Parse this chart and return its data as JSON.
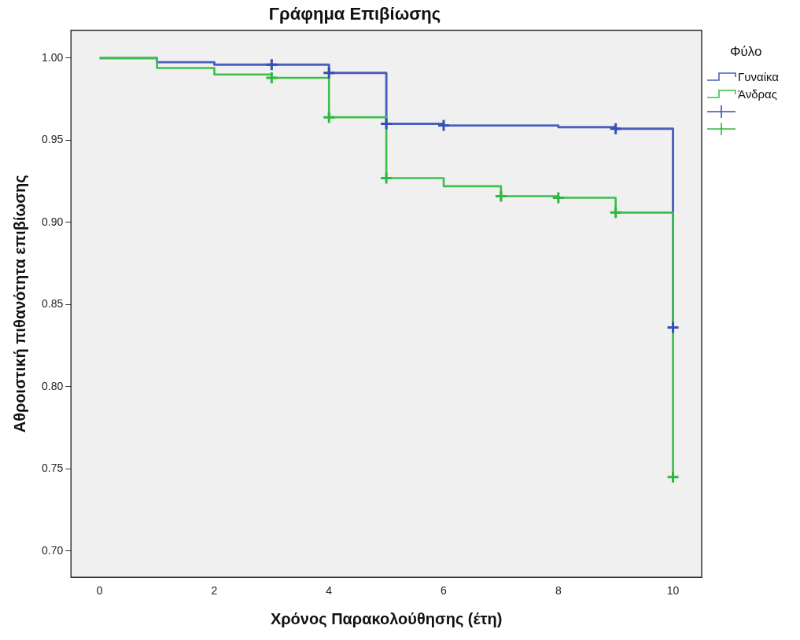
{
  "chart_data": {
    "type": "step",
    "title": "Γράφημα Επιβίωσης",
    "xlabel": "Χρόνος Παρακολούθησης (έτη)",
    "ylabel": "Αθροιστική πιθανότητα επιβίωσης",
    "legend_title": "Φύλο",
    "legend": "right",
    "grid": false,
    "xlim": [
      -0.5,
      10.5
    ],
    "xticks": [
      0,
      2,
      4,
      6,
      8,
      10
    ],
    "ylim": [
      0.684,
      1.017
    ],
    "yticks": [
      {
        "value": 0.7,
        "label": "0.70"
      },
      {
        "value": 0.75,
        "label": "0.75"
      },
      {
        "value": 0.8,
        "label": "0.80"
      },
      {
        "value": 0.85,
        "label": "0.85"
      },
      {
        "value": 0.9,
        "label": "0.90"
      },
      {
        "value": 0.95,
        "label": "0.95"
      },
      {
        "value": 1.0,
        "label": "1.00"
      }
    ],
    "series": [
      {
        "name": "Γυναίκα",
        "marker": "none",
        "color": "#4a5fbf",
        "x": [
          0,
          1,
          2,
          3,
          4,
          5,
          6,
          8,
          9,
          10
        ],
        "values": [
          1.0,
          0.9975,
          0.996,
          0.996,
          0.991,
          0.96,
          0.959,
          0.958,
          0.957,
          0.836
        ]
      },
      {
        "name": "Άνδρας",
        "marker": "none",
        "color": "#3cbf4a",
        "x": [
          0,
          1,
          2,
          3,
          4,
          5,
          6,
          7,
          8,
          9,
          10
        ],
        "values": [
          1.0,
          0.994,
          0.99,
          0.988,
          0.964,
          0.927,
          0.922,
          0.916,
          0.915,
          0.906,
          0.745
        ]
      },
      {
        "type": "scatter",
        "marker": "cross",
        "color": "#3550b5",
        "x": [
          3,
          4,
          5,
          6,
          9,
          10
        ],
        "values": [
          0.996,
          0.991,
          0.96,
          0.959,
          0.957,
          0.836
        ]
      },
      {
        "type": "scatter",
        "marker": "cross",
        "color": "#2db83e",
        "x": [
          3,
          4,
          5,
          7,
          8,
          9,
          10
        ],
        "values": [
          0.988,
          0.964,
          0.927,
          0.916,
          0.915,
          0.906,
          0.745
        ]
      }
    ]
  }
}
